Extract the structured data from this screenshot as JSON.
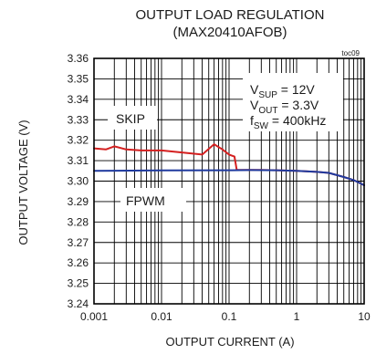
{
  "chart_data": {
    "type": "line",
    "title": "OUTPUT LOAD REGULATION",
    "subtitle": "(MAX20410AFOB)",
    "tag": "toc09",
    "xlabel": "OUTPUT CURRENT (A)",
    "ylabel": "OUTPUT VOLTAGE (V)",
    "xscale": "log",
    "xlim": [
      0.001,
      10
    ],
    "ylim": [
      3.24,
      3.36
    ],
    "grid": true,
    "xticks": [
      "0.001",
      "0.01",
      "0.1",
      "1",
      "10"
    ],
    "yticks": [
      "3.24",
      "3.25",
      "3.26",
      "3.27",
      "3.28",
      "3.29",
      "3.30",
      "3.31",
      "3.32",
      "3.33",
      "3.34",
      "3.35",
      "3.36"
    ],
    "annotations": {
      "conditions": [
        {
          "main": "V",
          "sub": "SUP",
          "rest": " = 12V"
        },
        {
          "main": "V",
          "sub": "OUT",
          "rest": " = 3.3V"
        },
        {
          "main": "f",
          "sub": "SW",
          "rest": " = 400kHz"
        }
      ],
      "skip_label": "SKIP",
      "fpwm_label": "FPWM"
    },
    "series": [
      {
        "name": "SKIP",
        "color": "#d42020",
        "x": [
          0.001,
          0.0015,
          0.002,
          0.003,
          0.005,
          0.01,
          0.02,
          0.04,
          0.06,
          0.08,
          0.1,
          0.12,
          0.13,
          0.2,
          0.3,
          0.5,
          1,
          2,
          3,
          5,
          7,
          10
        ],
        "y": [
          3.316,
          3.3155,
          3.317,
          3.3155,
          3.315,
          3.315,
          3.314,
          3.313,
          3.318,
          3.3155,
          3.313,
          3.312,
          3.3055,
          3.3055,
          3.3055,
          3.3053,
          3.305,
          3.3045,
          3.304,
          3.302,
          3.3005,
          3.298
        ]
      },
      {
        "name": "FPWM",
        "color": "#1f3a9e",
        "x": [
          0.001,
          0.01,
          0.1,
          0.2,
          0.5,
          1,
          2,
          3,
          5,
          7,
          10
        ],
        "y": [
          3.305,
          3.3052,
          3.3053,
          3.3054,
          3.3053,
          3.305,
          3.3045,
          3.304,
          3.302,
          3.3005,
          3.298
        ]
      }
    ]
  }
}
